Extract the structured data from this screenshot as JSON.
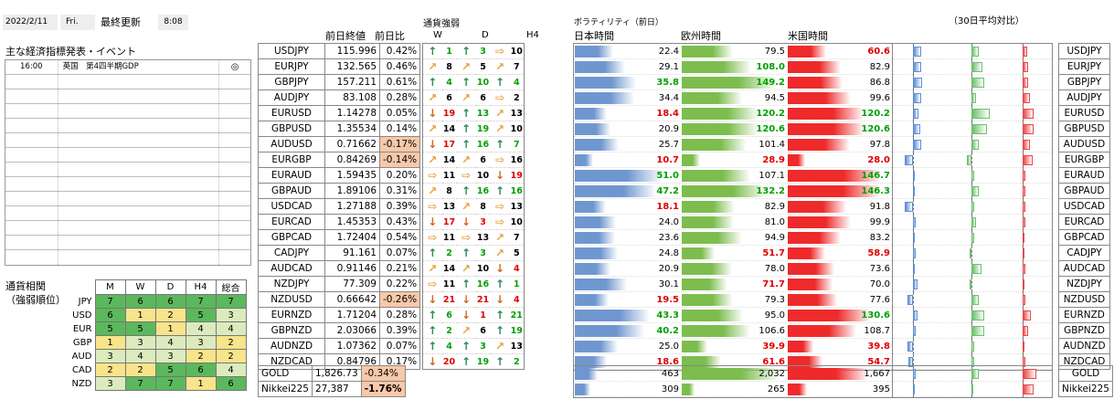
{
  "header": {
    "date": "2022/2/11",
    "day": "Fri.",
    "update_label": "最終更新",
    "time": "8:08",
    "close_label": "前日終値",
    "change_label": "前日比",
    "strength_label": "通貨強弱",
    "strength_cols": [
      "W",
      "D",
      "H4"
    ],
    "vol_label": "ボラティリティ（前日）",
    "vol_cols": [
      "日本時間",
      "欧州時間",
      "米国時間"
    ],
    "avg_label": "（30日平均対比）"
  },
  "events": {
    "title": "主な経済指標発表・イベント",
    "rows": [
      {
        "time": "16:00",
        "country": "英国",
        "desc": "第4四半期GDP",
        "mark": "◎"
      }
    ],
    "blank_rows": 13
  },
  "corr": {
    "title1": "通貨相関",
    "title2": "（強弱順位）",
    "cols": [
      "M",
      "W",
      "D",
      "H4",
      "総合"
    ],
    "rows": [
      {
        "name": "JPY",
        "v": [
          7,
          6,
          6,
          7,
          7
        ]
      },
      {
        "name": "USD",
        "v": [
          6,
          1,
          2,
          5,
          3
        ]
      },
      {
        "name": "EUR",
        "v": [
          5,
          5,
          1,
          4,
          4
        ]
      },
      {
        "name": "GBP",
        "v": [
          1,
          3,
          4,
          3,
          2
        ]
      },
      {
        "name": "AUD",
        "v": [
          3,
          4,
          3,
          2,
          2
        ]
      },
      {
        "name": "CAD",
        "v": [
          2,
          2,
          5,
          6,
          4
        ]
      },
      {
        "name": "NZD",
        "v": [
          3,
          7,
          7,
          1,
          6
        ]
      }
    ]
  },
  "pairs": [
    {
      "p": "USDJPY",
      "c": "115.996",
      "ch": "0.42%",
      "neg": false,
      "w": "up",
      "wn": "1",
      "d": "up",
      "dn": "3",
      "h": "flat",
      "hn": "10",
      "j": "22.4",
      "e": "79.5",
      "u": "60.6",
      "jc": "n",
      "ec": "n",
      "uc": "r"
    },
    {
      "p": "EURJPY",
      "c": "132.565",
      "ch": "0.46%",
      "neg": false,
      "w": "dr",
      "wn": "8",
      "d": "dr",
      "dn": "5",
      "h": "dr",
      "hn": "7",
      "j": "29.1",
      "e": "108.0",
      "u": "82.9",
      "jc": "n",
      "ec": "g",
      "uc": "n"
    },
    {
      "p": "GBPJPY",
      "c": "157.211",
      "ch": "0.61%",
      "neg": false,
      "w": "up",
      "wn": "4",
      "d": "up",
      "dn": "10",
      "h": "up",
      "hn": "4",
      "j": "35.8",
      "e": "149.2",
      "u": "86.8",
      "jc": "g",
      "ec": "g",
      "uc": "n"
    },
    {
      "p": "AUDJPY",
      "c": "83.108",
      "ch": "0.28%",
      "neg": false,
      "w": "dr",
      "wn": "6",
      "d": "dr",
      "dn": "6",
      "h": "flat",
      "hn": "2",
      "j": "34.4",
      "e": "94.5",
      "u": "99.6",
      "jc": "n",
      "ec": "n",
      "uc": "n"
    },
    {
      "p": "EURUSD",
      "c": "1.14278",
      "ch": "0.05%",
      "neg": false,
      "w": "down",
      "wn": "19",
      "d": "up",
      "dn": "13",
      "h": "dr",
      "hn": "13",
      "j": "18.4",
      "e": "120.2",
      "u": "120.2",
      "jc": "r",
      "ec": "g",
      "uc": "g"
    },
    {
      "p": "GBPUSD",
      "c": "1.35534",
      "ch": "0.14%",
      "neg": false,
      "w": "dr",
      "wn": "14",
      "d": "up",
      "dn": "19",
      "h": "dr",
      "hn": "10",
      "j": "20.9",
      "e": "120.6",
      "u": "120.6",
      "jc": "n",
      "ec": "g",
      "uc": "g"
    },
    {
      "p": "AUDUSD",
      "c": "0.71662",
      "ch": "-0.17%",
      "neg": true,
      "w": "down",
      "wn": "17",
      "d": "up",
      "dn": "16",
      "h": "up",
      "hn": "7",
      "j": "25.7",
      "e": "101.4",
      "u": "97.8",
      "jc": "n",
      "ec": "n",
      "uc": "n"
    },
    {
      "p": "EURGBP",
      "c": "0.84269",
      "ch": "-0.14%",
      "neg": true,
      "w": "dr",
      "wn": "14",
      "d": "dr",
      "dn": "6",
      "h": "flat",
      "hn": "16",
      "j": "10.7",
      "e": "28.9",
      "u": "28.0",
      "jc": "r",
      "ec": "r",
      "uc": "r"
    },
    {
      "p": "EURAUD",
      "c": "1.59435",
      "ch": "0.20%",
      "neg": false,
      "w": "flat",
      "wn": "11",
      "d": "flat",
      "dn": "10",
      "h": "down",
      "hn": "19",
      "j": "51.0",
      "e": "107.1",
      "u": "146.7",
      "jc": "g",
      "ec": "n",
      "uc": "g"
    },
    {
      "p": "GBPAUD",
      "c": "1.89106",
      "ch": "0.31%",
      "neg": false,
      "w": "dr",
      "wn": "8",
      "d": "up",
      "dn": "16",
      "h": "up",
      "hn": "16",
      "j": "47.2",
      "e": "132.2",
      "u": "146.3",
      "jc": "g",
      "ec": "g",
      "uc": "g"
    },
    {
      "p": "USDCAD",
      "c": "1.27188",
      "ch": "0.39%",
      "neg": false,
      "w": "flat",
      "wn": "13",
      "d": "dr",
      "dn": "8",
      "h": "flat",
      "hn": "13",
      "j": "18.1",
      "e": "82.9",
      "u": "91.8",
      "jc": "r",
      "ec": "n",
      "uc": "n"
    },
    {
      "p": "EURCAD",
      "c": "1.45353",
      "ch": "0.43%",
      "neg": false,
      "w": "down",
      "wn": "17",
      "d": "down",
      "dn": "3",
      "h": "flat",
      "hn": "10",
      "j": "24.0",
      "e": "81.0",
      "u": "99.9",
      "jc": "n",
      "ec": "n",
      "uc": "n"
    },
    {
      "p": "GBPCAD",
      "c": "1.72404",
      "ch": "0.54%",
      "neg": false,
      "w": "flat",
      "wn": "11",
      "d": "flat",
      "dn": "13",
      "h": "dr",
      "hn": "7",
      "j": "23.6",
      "e": "94.9",
      "u": "83.2",
      "jc": "n",
      "ec": "n",
      "uc": "n"
    },
    {
      "p": "CADJPY",
      "c": "91.161",
      "ch": "0.07%",
      "neg": false,
      "w": "up",
      "wn": "2",
      "d": "up",
      "dn": "3",
      "h": "dr",
      "hn": "5",
      "j": "24.8",
      "e": "51.7",
      "u": "58.9",
      "jc": "n",
      "ec": "r",
      "uc": "r"
    },
    {
      "p": "AUDCAD",
      "c": "0.91146",
      "ch": "0.21%",
      "neg": false,
      "w": "dr",
      "wn": "14",
      "d": "dr",
      "dn": "10",
      "h": "down",
      "hn": "4",
      "j": "20.9",
      "e": "78.0",
      "u": "73.6",
      "jc": "n",
      "ec": "n",
      "uc": "n"
    },
    {
      "p": "NZDJPY",
      "c": "77.309",
      "ch": "0.22%",
      "neg": false,
      "w": "flat",
      "wn": "11",
      "d": "up",
      "dn": "16",
      "h": "up",
      "hn": "1",
      "j": "30.1",
      "e": "71.7",
      "u": "70.0",
      "jc": "n",
      "ec": "r",
      "uc": "n"
    },
    {
      "p": "NZDUSD",
      "c": "0.66642",
      "ch": "-0.26%",
      "neg": true,
      "w": "down",
      "wn": "21",
      "d": "down",
      "dn": "21",
      "h": "down",
      "hn": "4",
      "j": "19.5",
      "e": "79.3",
      "u": "77.6",
      "jc": "r",
      "ec": "n",
      "uc": "n"
    },
    {
      "p": "EURNZD",
      "c": "1.71204",
      "ch": "0.28%",
      "neg": false,
      "w": "up",
      "wn": "6",
      "d": "down",
      "dn": "1",
      "h": "up",
      "hn": "21",
      "j": "43.3",
      "e": "95.0",
      "u": "130.6",
      "jc": "g",
      "ec": "n",
      "uc": "g"
    },
    {
      "p": "GBPNZD",
      "c": "2.03066",
      "ch": "0.39%",
      "neg": false,
      "w": "up",
      "wn": "2",
      "d": "dr",
      "dn": "6",
      "h": "up",
      "hn": "19",
      "j": "40.2",
      "e": "106.6",
      "u": "108.7",
      "jc": "g",
      "ec": "n",
      "uc": "n"
    },
    {
      "p": "AUDNZD",
      "c": "1.07362",
      "ch": "0.07%",
      "neg": false,
      "w": "up",
      "wn": "4",
      "d": "up",
      "dn": "3",
      "h": "dr",
      "hn": "13",
      "j": "25.0",
      "e": "39.9",
      "u": "39.8",
      "jc": "n",
      "ec": "r",
      "uc": "r"
    },
    {
      "p": "NZDCAD",
      "c": "0.84796",
      "ch": "0.17%",
      "neg": false,
      "w": "down",
      "wn": "20",
      "d": "up",
      "dn": "19",
      "h": "up",
      "hn": "2",
      "j": "18.6",
      "e": "61.6",
      "u": "54.7",
      "jc": "r",
      "ec": "r",
      "uc": "r"
    }
  ],
  "extras": [
    {
      "p": "GOLD",
      "c": "1,826.73",
      "ch": "-0.34%",
      "neg": true,
      "j": "463",
      "e": "2,032",
      "u": "1,667",
      "jc": "n",
      "ec": "n",
      "uc": "n"
    },
    {
      "p": "Nikkei225",
      "c": "27,387",
      "ch": "-1.76%",
      "neg": true,
      "bold": true,
      "j": "309",
      "e": "265",
      "u": "395",
      "jc": "n",
      "ec": "n",
      "uc": "n"
    }
  ],
  "colors": {
    "jp_bar": "#6f97cf",
    "eu_bar": "#7cbd4e",
    "us_bar": "#ee2a2a",
    "avg_blue": "#5b8fd6",
    "avg_green": "#6cc06c",
    "avg_red": "#ee4444",
    "heat_green": "#5cb85c",
    "heat_yellow": "#f7e48b",
    "neg_bg": "#f8c8a8"
  },
  "avg": [
    {
      "j": 0.3,
      "e": 0.25,
      "u": 0.15
    },
    {
      "j": 0.3,
      "e": 0.4,
      "u": 0.2
    },
    {
      "j": 0.32,
      "e": 0.45,
      "u": 0.2
    },
    {
      "j": 0.3,
      "e": 0.15,
      "u": 0.25
    },
    {
      "j": 0.2,
      "e": 0.65,
      "u": 0.4
    },
    {
      "j": 0.25,
      "e": 0.55,
      "u": 0.4
    },
    {
      "j": 0.3,
      "e": 0.25,
      "u": 0.25
    },
    {
      "j": -0.3,
      "e": -0.15,
      "u": 0.35
    },
    {
      "j": 0.05,
      "e": 0.1,
      "u": 0.1
    },
    {
      "j": 0.05,
      "e": 0.25,
      "u": 0.1
    },
    {
      "j": -0.3,
      "e": 0.1,
      "u": 0.1
    },
    {
      "j": 0.1,
      "e": 0.15,
      "u": 0.1
    },
    {
      "j": 0.05,
      "e": 0.1,
      "u": 0.05
    },
    {
      "j": 0.1,
      "e": -0.05,
      "u": 0.05
    },
    {
      "j": 0.05,
      "e": 0.35,
      "u": 0.1
    },
    {
      "j": 0.15,
      "e": -0.05,
      "u": 0.05
    },
    {
      "j": -0.2,
      "e": 0.25,
      "u": 0.1
    },
    {
      "j": 0.15,
      "e": 0.45,
      "u": 0.3
    },
    {
      "j": 0.1,
      "e": 0.45,
      "u": 0.2
    },
    {
      "j": -0.2,
      "e": 0.1,
      "u": 0.05
    },
    {
      "j": -0.15,
      "e": 0.1,
      "u": 0.1
    }
  ],
  "avg_extras": [
    {
      "j": 0.1,
      "e": 0.25,
      "u": 0.5
    },
    {
      "j": 0.05,
      "e": 0.05,
      "u": 0.4
    }
  ]
}
